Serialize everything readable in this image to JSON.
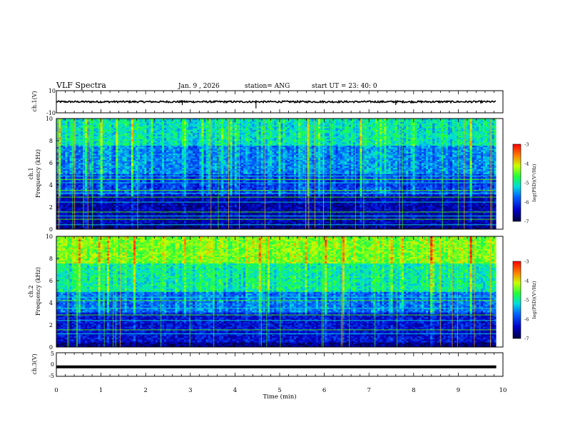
{
  "header": {
    "title": "VLF Spectra",
    "date": "Jan. 9 , 2026",
    "station": "station= ANG",
    "start": "start UT = 23: 40: 0"
  },
  "colors": {
    "spec_low": "#000066",
    "spec_mid": "#00d8d8",
    "spec_green": "#4cff00",
    "spec_high": "#ff0000",
    "trace": "#000000"
  },
  "chart_data": [
    {
      "type": "line",
      "name": "ch1-waveform",
      "ylabel": "ch.1(V)",
      "ylim": [
        -10,
        10
      ],
      "yticks": [
        "10",
        "-10"
      ],
      "baseline": 0,
      "spikes": [
        {
          "t": 2.82,
          "v": -3
        },
        {
          "t": 4.47,
          "v": -6
        },
        {
          "t": 7.6,
          "v": -3
        }
      ]
    },
    {
      "type": "heatmap",
      "name": "ch1-spectrogram",
      "ylabel": "ch.1 Frequency (kHz)",
      "ylim": [
        0,
        10
      ],
      "yticks": [
        "0",
        "2",
        "4",
        "6",
        "8",
        "10"
      ],
      "colorbar": {
        "label": "log(PSD)(V²/Hz)",
        "ticks": [
          "-3",
          "-4",
          "-5",
          "-6",
          "-7"
        ],
        "range": [
          -7,
          -3
        ]
      },
      "bright_lines_khz": [
        0.4,
        0.9,
        1.2,
        1.55,
        2.45,
        2.9,
        3.25,
        3.5,
        4.2,
        4.5,
        4.8
      ]
    },
    {
      "type": "heatmap",
      "name": "ch2-spectrogram",
      "ylabel": "ch.2 Frequency (kHz)",
      "ylim": [
        0,
        10
      ],
      "yticks": [
        "0",
        "2",
        "4",
        "6",
        "8",
        "10"
      ],
      "colorbar": {
        "label": "log(PSD)(V²/Hz)",
        "ticks": [
          "-3",
          "-4",
          "-5",
          "-6",
          "-7"
        ],
        "range": [
          -7,
          -3
        ]
      },
      "bright_lines_khz": [
        1.2,
        1.55,
        2.4,
        2.9,
        3.5,
        4.2,
        4.5
      ]
    },
    {
      "type": "line",
      "name": "ch3-waveform",
      "ylabel": "ch.3(V)",
      "ylim": [
        -5,
        5
      ],
      "yticks": [
        "5",
        "0",
        "-5"
      ],
      "baseline": -1
    }
  ],
  "xaxis": {
    "label": "Time (min)",
    "range": [
      0,
      10
    ],
    "ticks": [
      "0",
      "1",
      "2",
      "3",
      "4",
      "5",
      "6",
      "7",
      "8",
      "9",
      "10"
    ],
    "data_end": 9.85
  }
}
